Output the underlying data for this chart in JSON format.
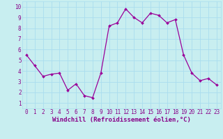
{
  "x": [
    0,
    1,
    2,
    3,
    4,
    5,
    6,
    7,
    8,
    9,
    10,
    11,
    12,
    13,
    14,
    15,
    16,
    17,
    18,
    19,
    20,
    21,
    22,
    23
  ],
  "y": [
    5.5,
    4.5,
    3.5,
    3.7,
    3.8,
    2.2,
    2.8,
    1.7,
    1.5,
    3.8,
    8.2,
    8.5,
    9.8,
    9.0,
    8.5,
    9.4,
    9.2,
    8.5,
    8.8,
    5.5,
    3.8,
    3.1,
    3.3,
    2.7
  ],
  "line_color": "#990099",
  "marker_color": "#990099",
  "bg_color": "#c8eef0",
  "grid_color": "#aaddee",
  "xlabel": "Windchill (Refroidissement éolien,°C)",
  "xlabel_color": "#880088",
  "xlabel_fontsize": 6.5,
  "tick_color": "#880088",
  "tick_fontsize": 5.5,
  "ylim_min": 0.5,
  "ylim_max": 10.5,
  "xlim_min": -0.5,
  "xlim_max": 23.5,
  "yticks": [
    1,
    2,
    3,
    4,
    5,
    6,
    7,
    8,
    9,
    10
  ],
  "xticks": [
    0,
    1,
    2,
    3,
    4,
    5,
    6,
    7,
    8,
    9,
    10,
    11,
    12,
    13,
    14,
    15,
    16,
    17,
    18,
    19,
    20,
    21,
    22,
    23
  ]
}
